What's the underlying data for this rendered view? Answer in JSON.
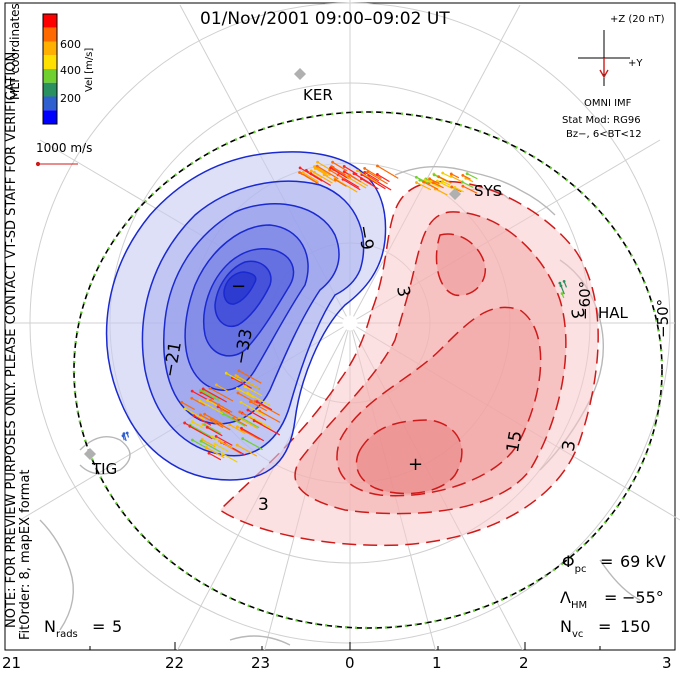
{
  "title": "01/Nov/2001 09:00–09:02 UT",
  "side_labels": {
    "preview_note": "NOTE: FOR PREVIEW PURPOSES ONLY. PLEASE CONTACT VT-SD STAFF FOR VERIFICATION.",
    "mlt_coords": "MLT coordinates",
    "fit_order": "FitOrder: 8, mapEX format"
  },
  "velocity_legend": {
    "label": "Vel [m/s]",
    "ticks": [
      "600",
      "400",
      "200"
    ],
    "colors": [
      "#ff0000",
      "#ff6a00",
      "#ffb000",
      "#ffe000",
      "#70d030",
      "#2a9060",
      "#3060d0",
      "#0000ff"
    ],
    "ref_vector_label": "1000 m/s"
  },
  "imf": {
    "z_label": "+Z (20 nT)",
    "y_label": "+Y",
    "source": "OMNI IMF",
    "model_line1": "Stat Mod: RG96",
    "model_line2": "Bz−, 6<BT<12"
  },
  "stats": {
    "phi_pc": "69 kV",
    "lambda_hm": "−55°",
    "n_vc": "150",
    "n_rads": "5"
  },
  "mlt_ticks": [
    "21",
    "22",
    "23",
    "0",
    "1",
    "2",
    "3"
  ],
  "lat_labels": [
    "−50°",
    "−60°"
  ],
  "station_labels": [
    "KER",
    "SYS",
    "HAL",
    "TIG"
  ],
  "contour_labels": {
    "negative": [
      "−9",
      "−21",
      "−33"
    ],
    "positive": [
      "3",
      "3",
      "15",
      "3",
      "3"
    ]
  },
  "extrema_marks": {
    "min": "−",
    "max": "+"
  },
  "colors": {
    "negative_contour": "#1a2ad0",
    "positive_contour": "#d01a1a",
    "negative_fill": "#3a50e0",
    "positive_fill": "#f08080",
    "boundary": "#000000",
    "boundary_dots": "#66cc33",
    "imf_vector": "#d01a1a"
  }
}
